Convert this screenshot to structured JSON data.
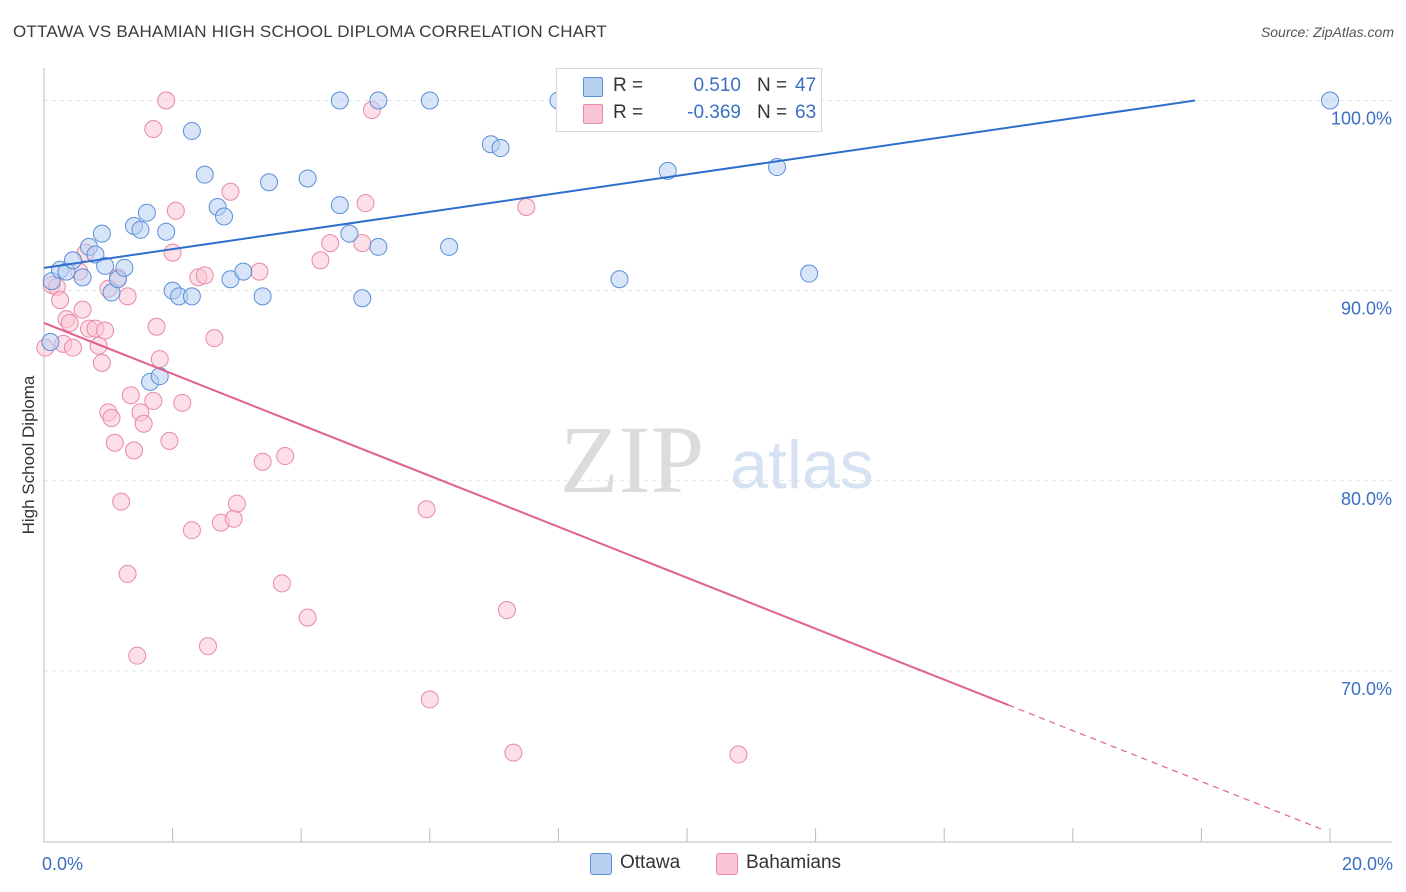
{
  "title": "OTTAWA VS BAHAMIAN HIGH SCHOOL DIPLOMA CORRELATION CHART",
  "source": "Source: ZipAtlas.com",
  "watermark": {
    "zip": "ZIP",
    "atlas": "atlas"
  },
  "colors": {
    "ottawa_fill": "#b8d0f2",
    "ottawa_stroke": "#5b8fd8",
    "ottawa_line": "#2f6fcc",
    "bahamians_fill": "#f9c4d3",
    "bahamians_stroke": "#e889a8",
    "bahamians_line": "#e0608f",
    "tick_text": "#3a6fc4",
    "grid": "#e3e3e3"
  },
  "legend": {
    "ottawa": {
      "r_label": "R =",
      "r_value": "0.510",
      "n_label": "N =",
      "n_value": "47"
    },
    "bahamians": {
      "r_label": "R =",
      "r_value": "-0.369",
      "n_label": "N =",
      "n_value": "63"
    }
  },
  "bottom_legend": {
    "ottawa": "Ottawa",
    "bahamians": "Bahamians"
  },
  "chart_data": {
    "type": "scatter",
    "ylabel": "High School Diploma",
    "xlim": [
      0,
      20
    ],
    "ylim": [
      61,
      101.5
    ],
    "x_tick_labels": [
      {
        "value": 0,
        "label": "0.0%"
      },
      {
        "value": 20,
        "label": "20.0%"
      }
    ],
    "y_tick_labels": [
      {
        "value": 100,
        "label": "100.0%"
      },
      {
        "value": 90,
        "label": "90.0%"
      },
      {
        "value": 80,
        "label": "80.0%"
      },
      {
        "value": 70,
        "label": "70.0%"
      }
    ],
    "grid": true,
    "series": [
      {
        "name": "Ottawa",
        "trend": {
          "x0": 0,
          "y0": 91.2,
          "x1": 17.9,
          "y1": 100.0,
          "dashed_to_x": null
        },
        "points": [
          [
            0.1,
            87.3
          ],
          [
            0.12,
            90.5
          ],
          [
            0.25,
            91.1
          ],
          [
            0.35,
            91.0
          ],
          [
            0.45,
            91.6
          ],
          [
            0.6,
            90.7
          ],
          [
            0.7,
            92.3
          ],
          [
            0.8,
            91.9
          ],
          [
            0.9,
            93.0
          ],
          [
            0.95,
            91.3
          ],
          [
            1.05,
            89.9
          ],
          [
            1.15,
            90.6
          ],
          [
            1.25,
            91.2
          ],
          [
            1.4,
            93.4
          ],
          [
            1.5,
            93.2
          ],
          [
            1.6,
            94.1
          ],
          [
            1.65,
            85.2
          ],
          [
            1.8,
            85.5
          ],
          [
            1.9,
            93.1
          ],
          [
            2.0,
            90.0
          ],
          [
            2.1,
            89.7
          ],
          [
            2.3,
            89.7
          ],
          [
            2.3,
            98.4
          ],
          [
            2.5,
            96.1
          ],
          [
            2.7,
            94.4
          ],
          [
            2.8,
            93.9
          ],
          [
            2.9,
            90.6
          ],
          [
            3.1,
            91.0
          ],
          [
            3.4,
            89.7
          ],
          [
            3.5,
            95.7
          ],
          [
            4.1,
            95.9
          ],
          [
            4.6,
            100.0
          ],
          [
            4.6,
            94.5
          ],
          [
            4.75,
            93.0
          ],
          [
            4.95,
            89.6
          ],
          [
            5.2,
            100.0
          ],
          [
            5.2,
            92.3
          ],
          [
            6.0,
            100.0
          ],
          [
            6.3,
            92.3
          ],
          [
            6.95,
            97.7
          ],
          [
            7.1,
            97.5
          ],
          [
            8.95,
            90.6
          ],
          [
            9.7,
            96.3
          ],
          [
            11.4,
            96.5
          ],
          [
            11.9,
            90.9
          ],
          [
            20.0,
            100.0
          ],
          [
            8.0,
            100.0
          ]
        ]
      },
      {
        "name": "Bahamians",
        "trend": {
          "x0": 0,
          "y0": 88.3,
          "x1": 15.0,
          "y1": 68.2,
          "dashed_to_x": 19.9
        },
        "points": [
          [
            0.02,
            87.0
          ],
          [
            0.12,
            90.3
          ],
          [
            0.2,
            90.2
          ],
          [
            0.25,
            89.5
          ],
          [
            0.3,
            87.2
          ],
          [
            0.35,
            88.5
          ],
          [
            0.4,
            88.3
          ],
          [
            0.45,
            87.0
          ],
          [
            0.55,
            91.0
          ],
          [
            0.6,
            89.0
          ],
          [
            0.65,
            92.0
          ],
          [
            0.7,
            88.0
          ],
          [
            0.8,
            88.0
          ],
          [
            0.85,
            87.1
          ],
          [
            0.9,
            86.2
          ],
          [
            0.95,
            87.9
          ],
          [
            1.0,
            83.6
          ],
          [
            1.05,
            83.3
          ],
          [
            1.1,
            82.0
          ],
          [
            1.15,
            90.7
          ],
          [
            1.2,
            78.9
          ],
          [
            1.3,
            75.1
          ],
          [
            1.3,
            89.7
          ],
          [
            1.35,
            84.5
          ],
          [
            1.4,
            81.6
          ],
          [
            1.45,
            70.8
          ],
          [
            1.5,
            83.6
          ],
          [
            1.55,
            83.0
          ],
          [
            1.7,
            84.2
          ],
          [
            1.7,
            98.5
          ],
          [
            1.75,
            88.1
          ],
          [
            1.8,
            86.4
          ],
          [
            1.9,
            100.0
          ],
          [
            1.95,
            82.1
          ],
          [
            2.0,
            92.0
          ],
          [
            2.05,
            94.2
          ],
          [
            2.15,
            84.1
          ],
          [
            2.3,
            77.4
          ],
          [
            2.4,
            90.7
          ],
          [
            2.5,
            90.8
          ],
          [
            2.55,
            71.3
          ],
          [
            2.65,
            87.5
          ],
          [
            2.75,
            77.8
          ],
          [
            2.9,
            95.2
          ],
          [
            2.95,
            78.0
          ],
          [
            3.0,
            78.8
          ],
          [
            3.35,
            91.0
          ],
          [
            3.4,
            81.0
          ],
          [
            3.7,
            74.6
          ],
          [
            3.75,
            81.3
          ],
          [
            4.1,
            72.8
          ],
          [
            4.3,
            91.6
          ],
          [
            4.45,
            92.5
          ],
          [
            4.95,
            92.5
          ],
          [
            5.0,
            94.6
          ],
          [
            5.1,
            99.5
          ],
          [
            5.95,
            78.5
          ],
          [
            6.0,
            68.5
          ],
          [
            7.2,
            73.2
          ],
          [
            7.3,
            65.7
          ],
          [
            7.5,
            94.4
          ],
          [
            10.8,
            65.6
          ],
          [
            1.0,
            90.1
          ]
        ]
      }
    ]
  }
}
